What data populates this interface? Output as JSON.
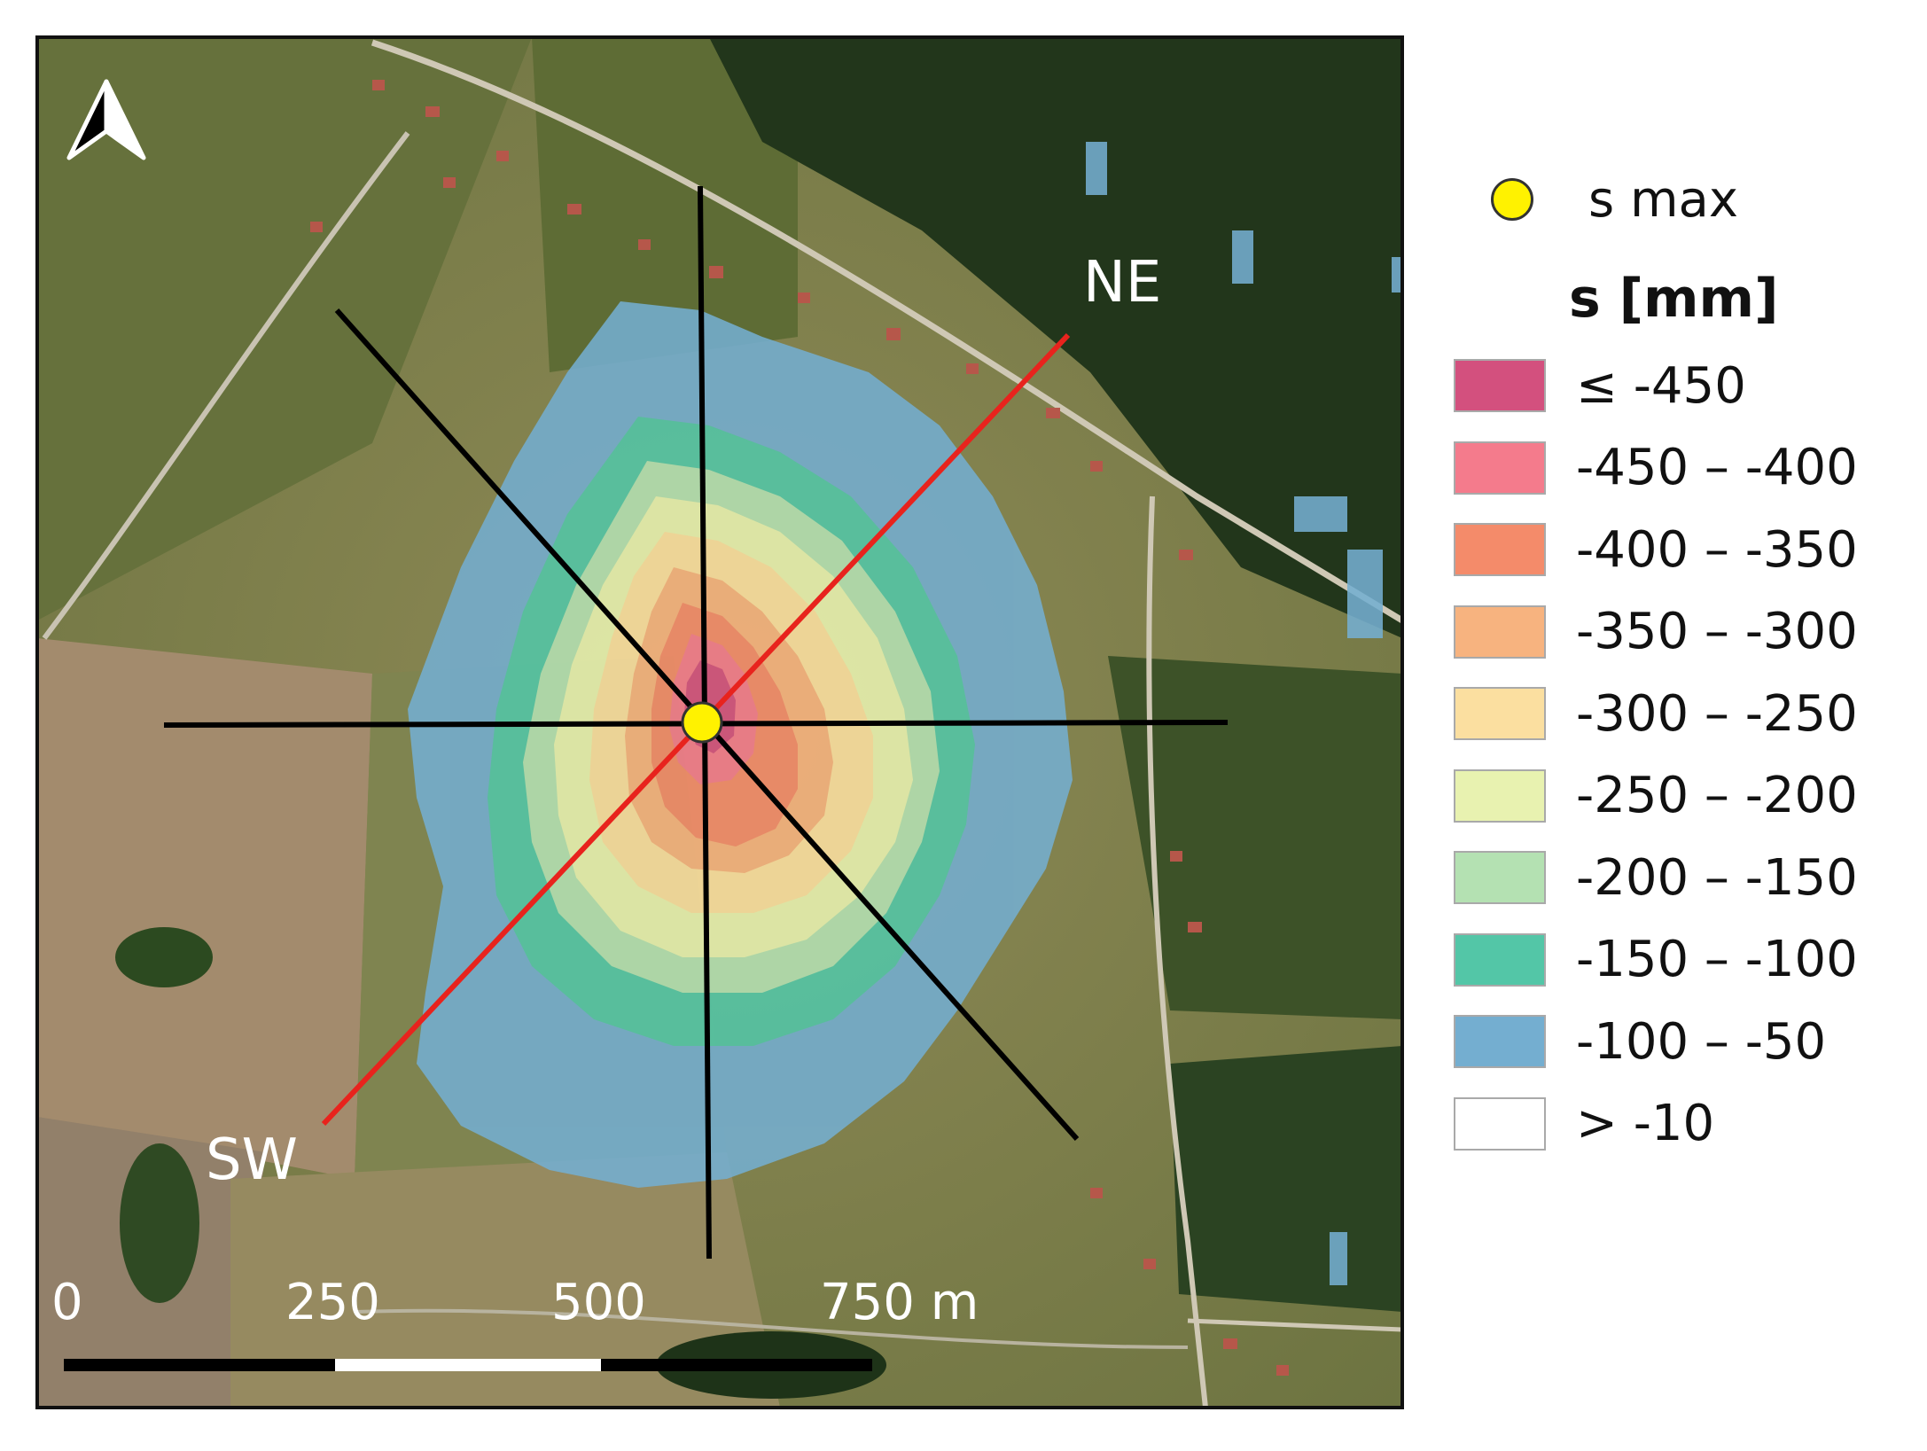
{
  "map": {
    "north_arrow": "north-arrow-icon",
    "profile_labels": {
      "ne": "NE",
      "sw": "SW"
    },
    "scale_bar": {
      "ticks": [
        "0",
        "250",
        "500",
        "750 m"
      ]
    },
    "colors": {
      "satellite_base": "#5c6b3c",
      "forest": "#24361d",
      "fields": "#9a8566",
      "profile_red": "#e8231d",
      "profile_black": "#000000",
      "smax": "#fff200"
    }
  },
  "legend": {
    "smax_label": "s max",
    "title": "s [mm]",
    "classes": [
      {
        "label": "≤ -450",
        "color": "#d3507e"
      },
      {
        "label": "-450 – -400",
        "color": "#f47b8c"
      },
      {
        "label": "-400 – -350",
        "color": "#f48b6a"
      },
      {
        "label": "-350 – -300",
        "color": "#f7b37f"
      },
      {
        "label": "-300 – -250",
        "color": "#fbdfa0"
      },
      {
        "label": "-250 – -200",
        "color": "#e8f2b0"
      },
      {
        "label": "-200 – -150",
        "color": "#b4e1b2"
      },
      {
        "label": "-150 – -100",
        "color": "#53c6a7"
      },
      {
        "label": "-100 – -50",
        "color": "#74aed0"
      },
      {
        "label": "> -10",
        "color": "#ffffff"
      }
    ]
  }
}
